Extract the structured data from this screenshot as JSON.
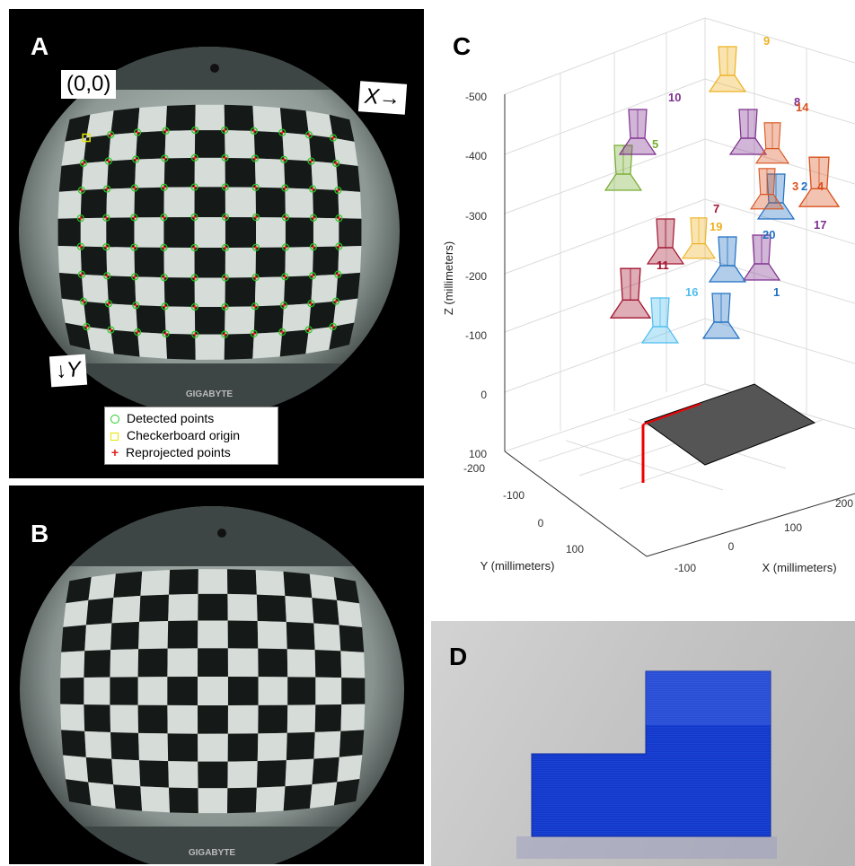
{
  "figure": {
    "panel_a": {
      "label": "A",
      "origin_label": "(0,0)",
      "x_axis_label": "X→",
      "y_axis_label": "↓Y",
      "brand_text": "GIGABYTE",
      "legend": [
        {
          "text": "Detected points",
          "color": "#22cc22",
          "marker": "circle"
        },
        {
          "text": "Checkerboard origin",
          "color": "#e6e600",
          "marker": "square"
        },
        {
          "text": "Reprojected points",
          "color": "#dd2222",
          "marker": "plus"
        }
      ]
    },
    "panel_b": {
      "label": "B",
      "brand_text": "GIGABYTE"
    },
    "panel_c": {
      "label": "C",
      "x_axis_label": "X (millimeters)",
      "y_axis_label": "Y (millimeters)",
      "z_axis_label": "Z (millimeters)",
      "z_ticks": [
        "-500",
        "-400",
        "-300",
        "-200",
        "-100",
        "0",
        "100"
      ],
      "y_ticks": [
        "-200",
        "-100",
        "0",
        "100"
      ],
      "x_ticks": [
        "-100",
        "0",
        "100",
        "200"
      ]
    },
    "panel_d": {
      "label": "D"
    }
  },
  "chart_data": {
    "type": "scatter",
    "projection": "3d",
    "title": "",
    "xlabel": "X (millimeters)",
    "ylabel": "Y (millimeters)",
    "zlabel": "Z (millimeters)",
    "zlim": [
      -500,
      100
    ],
    "grid": true,
    "camera_poses": [
      {
        "id": "1",
        "color": "#1f6fc4"
      },
      {
        "id": "2",
        "color": "#1f6fc4"
      },
      {
        "id": "3",
        "color": "#d9531e"
      },
      {
        "id": "4",
        "color": "#d9531e"
      },
      {
        "id": "5",
        "color": "#77ac30"
      },
      {
        "id": "7",
        "color": "#a2142f"
      },
      {
        "id": "8",
        "color": "#7e2f8e"
      },
      {
        "id": "9",
        "color": "#edb120"
      },
      {
        "id": "10",
        "color": "#7e2f8e"
      },
      {
        "id": "11",
        "color": "#a2142f"
      },
      {
        "id": "14",
        "color": "#d9531e"
      },
      {
        "id": "16",
        "color": "#4dbeee"
      },
      {
        "id": "17",
        "color": "#7e2f8e"
      },
      {
        "id": "19",
        "color": "#edb120"
      },
      {
        "id": "20",
        "color": "#1f6fc4"
      }
    ]
  }
}
